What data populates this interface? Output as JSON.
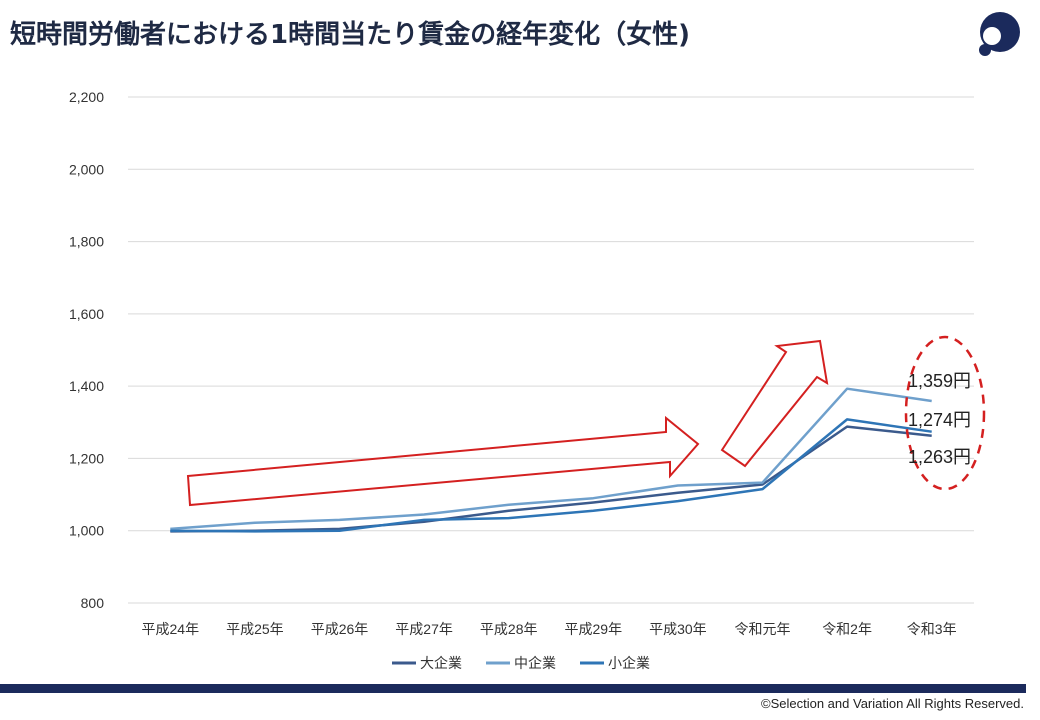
{
  "header": {
    "title": "短時間労働者における1時間当たり賃金の経年変化（女性)",
    "logo_icon": "brand-logo-icon"
  },
  "chart_data": {
    "type": "line",
    "categories": [
      "平成24年",
      "平成25年",
      "平成26年",
      "平成27年",
      "平成28年",
      "平成29年",
      "平成30年",
      "令和元年",
      "令和2年",
      "令和3年"
    ],
    "ylim": [
      800,
      2200
    ],
    "yticks": [
      "800",
      "1,000",
      "1,200",
      "1,400",
      "1,600",
      "1,800",
      "2,000",
      "2,200"
    ],
    "grid": true,
    "legend_position": "bottom",
    "series": [
      {
        "name": "大企業",
        "color": "#3b5a8c",
        "values": [
          998,
          1000,
          1005,
          1025,
          1055,
          1078,
          1105,
          1128,
          1288,
          1263
        ]
      },
      {
        "name": "中企業",
        "color": "#6fa0cc",
        "values": [
          1005,
          1022,
          1030,
          1045,
          1072,
          1090,
          1125,
          1133,
          1393,
          1359
        ]
      },
      {
        "name": "小企業",
        "color": "#2e75b6",
        "values": [
          1000,
          998,
          1000,
          1030,
          1035,
          1055,
          1082,
          1115,
          1308,
          1274
        ]
      }
    ],
    "annotations": [
      "1,359円",
      "1,274円",
      "1,263円"
    ],
    "annotation_color": "#d42020"
  },
  "footer": {
    "copyright": "©Selection and Variation All Rights Reserved.",
    "bar_color": "#1b2a5c"
  }
}
